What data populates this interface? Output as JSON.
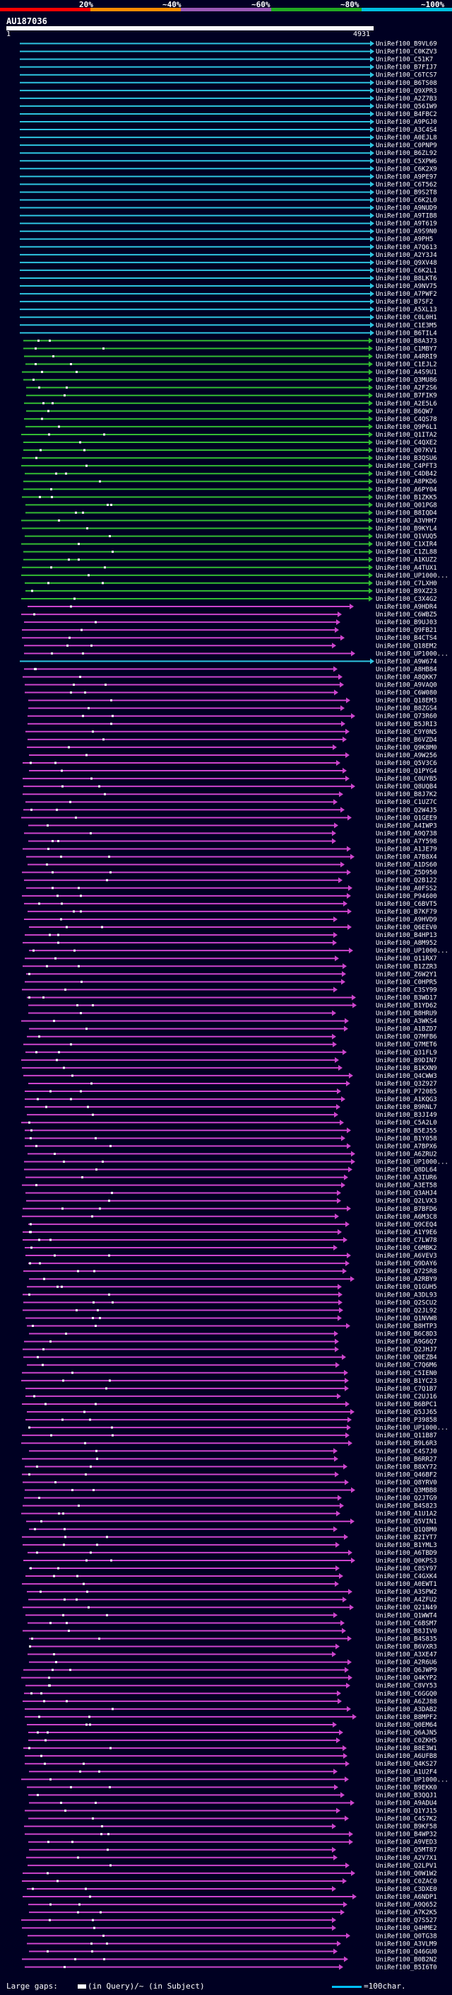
{
  "query": {
    "title": "AU187036",
    "ruler_start": "1",
    "ruler_end": "4931"
  },
  "legend": {
    "labels": [
      "20%",
      "~40%",
      "~60%",
      "~80%",
      "~100%"
    ],
    "colors": [
      "#ff0000",
      "#ff8c00",
      "#9b59b6",
      "#22aa22",
      "#00c0e0"
    ]
  },
  "colors": {
    "background": "#000022",
    "cyan": "#2ec4e0",
    "green": "#33bb33",
    "magenta": "#cc44cc",
    "text": "#ffffff",
    "dots": "#ffffff"
  },
  "hits": [
    {
      "label": "UniRef100_B9VL69",
      "c": "cyan"
    },
    {
      "label": "UniRef100_C0KZV3",
      "c": "cyan"
    },
    {
      "label": "UniRef100_C51K7",
      "c": "cyan"
    },
    {
      "label": "UniRef100_B7FIJ7",
      "c": "cyan"
    },
    {
      "label": "UniRef100_C6TCS7",
      "c": "cyan"
    },
    {
      "label": "UniRef100_B6TS08",
      "c": "cyan"
    },
    {
      "label": "UniRef100_Q9XPR3",
      "c": "cyan"
    },
    {
      "label": "UniRef100_A2Z7B3",
      "c": "cyan"
    },
    {
      "label": "UniRef100_Q56IW9",
      "c": "cyan"
    },
    {
      "label": "UniRef100_B4FBC2",
      "c": "cyan"
    },
    {
      "label": "UniRef100_A9PGJ0",
      "c": "cyan"
    },
    {
      "label": "UniRef100_A3C4S4",
      "c": "cyan"
    },
    {
      "label": "UniRef100_A0EJL8",
      "c": "cyan"
    },
    {
      "label": "UniRef100_C0PNP9",
      "c": "cyan"
    },
    {
      "label": "UniRef100_B6ZL92",
      "c": "cyan"
    },
    {
      "label": "UniRef100_C5XPW6",
      "c": "cyan"
    },
    {
      "label": "UniRef100_C6K2X9",
      "c": "cyan"
    },
    {
      "label": "UniRef100_A9PE97",
      "c": "cyan"
    },
    {
      "label": "UniRef100_C6T562",
      "c": "cyan"
    },
    {
      "label": "UniRef100_B9S2T8",
      "c": "cyan"
    },
    {
      "label": "UniRef100_C6K2L0",
      "c": "cyan"
    },
    {
      "label": "UniRef100_A9NUD9",
      "c": "cyan"
    },
    {
      "label": "UniRef100_A9TIB8",
      "c": "cyan"
    },
    {
      "label": "UniRef100_A9T619",
      "c": "cyan"
    },
    {
      "label": "UniRef100_A9S9N0",
      "c": "cyan"
    },
    {
      "label": "UniRef100_A9PH5",
      "c": "cyan"
    },
    {
      "label": "UniRef100_A7Q613",
      "c": "cyan"
    },
    {
      "label": "UniRef100_A2Y3J4",
      "c": "cyan"
    },
    {
      "label": "UniRef100_Q9XV48",
      "c": "cyan"
    },
    {
      "label": "UniRef100_C6K2L1",
      "c": "cyan"
    },
    {
      "label": "UniRef100_B8LKT6",
      "c": "cyan"
    },
    {
      "label": "UniRef100_A9NV75",
      "c": "cyan"
    },
    {
      "label": "UniRef100_A7PWF2",
      "c": "cyan"
    },
    {
      "label": "UniRef100_B7SF2",
      "c": "cyan"
    },
    {
      "label": "UniRef100_A5XL13",
      "c": "cyan"
    },
    {
      "label": "UniRef100_C0L0H1",
      "c": "cyan"
    },
    {
      "label": "UniRef100_C1E3M5",
      "c": "cyan"
    },
    {
      "label": "UniRef100_B6TIL4",
      "c": "cyan"
    },
    {
      "label": "UniRef100_B8A373",
      "c": "green"
    },
    {
      "label": "UniRef100_C1MBY7",
      "c": "green"
    },
    {
      "label": "UniRef100_A4RRI9",
      "c": "green"
    },
    {
      "label": "UniRef100_C1EJL2",
      "c": "green"
    },
    {
      "label": "UniRef100_A4S9U1",
      "c": "green"
    },
    {
      "label": "UniRef100_Q3MU86",
      "c": "green"
    },
    {
      "label": "UniRef100_A2F2S6",
      "c": "green"
    },
    {
      "label": "UniRef100_B7FIK9",
      "c": "green"
    },
    {
      "label": "UniRef100_A2E5L6",
      "c": "green"
    },
    {
      "label": "UniRef100_B6QW7",
      "c": "green"
    },
    {
      "label": "UniRef100_C4QS78",
      "c": "green"
    },
    {
      "label": "UniRef100_Q9P6L1",
      "c": "green"
    },
    {
      "label": "UniRef100_Q1ITA2",
      "c": "green"
    },
    {
      "label": "UniRef100_C4QXE2",
      "c": "green"
    },
    {
      "label": "UniRef100_Q07KV1",
      "c": "green"
    },
    {
      "label": "UniRef100_B3QSU6",
      "c": "green"
    },
    {
      "label": "UniRef100_C4PFT3",
      "c": "green"
    },
    {
      "label": "UniRef100_C4DB42",
      "c": "green"
    },
    {
      "label": "UniRef100_A8PKD6",
      "c": "green"
    },
    {
      "label": "UniRef100_A6PY04",
      "c": "green"
    },
    {
      "label": "UniRef100_B1ZKK5",
      "c": "green"
    },
    {
      "label": "UniRef100_Q01PG8",
      "c": "green"
    },
    {
      "label": "UniRef100_B8IQD4",
      "c": "green"
    },
    {
      "label": "UniRef100_A3VHH7",
      "c": "green"
    },
    {
      "label": "UniRef100_B9KYL4",
      "c": "green"
    },
    {
      "label": "UniRef100_Q1VUQ5",
      "c": "green"
    },
    {
      "label": "UniRef100_C1XIR4",
      "c": "green"
    },
    {
      "label": "UniRef100_C1ZL88",
      "c": "green"
    },
    {
      "label": "UniRef100_A1KUZ2",
      "c": "green"
    },
    {
      "label": "UniRef100_A4TUX1",
      "c": "green"
    },
    {
      "label": "UniRef100_UP1000...",
      "c": "green"
    },
    {
      "label": "UniRef100_C7LXH0",
      "c": "green"
    },
    {
      "label": "UniRef100_B9XZ23",
      "c": "green"
    },
    {
      "label": "UniRef100_C3X4G2",
      "c": "green"
    },
    {
      "label": "UniRef100_A9HDR4",
      "c": "magenta"
    },
    {
      "label": "UniRef100_C6WBZ5",
      "c": "magenta"
    },
    {
      "label": "UniRef100_B9UJ03",
      "c": "magenta"
    },
    {
      "label": "UniRef100_Q9FB21",
      "c": "magenta"
    },
    {
      "label": "UniRef100_B4CTS4",
      "c": "magenta"
    },
    {
      "label": "UniRef100_Q18EM2",
      "c": "magenta"
    },
    {
      "label": "UniRef100_UP1000...",
      "c": "magenta"
    },
    {
      "label": "UniRef100_A9W674",
      "c": "cyan"
    },
    {
      "label": "UniRef100_A8HB84",
      "c": "magenta"
    },
    {
      "label": "UniRef100_A8QKK7",
      "c": "magenta"
    },
    {
      "label": "UniRef100_A9VAQ0",
      "c": "magenta"
    },
    {
      "label": "UniRef100_C6W080",
      "c": "magenta"
    },
    {
      "label": "UniRef100_Q18EM3",
      "c": "magenta"
    },
    {
      "label": "UniRef100_B8ZGS4",
      "c": "magenta"
    },
    {
      "label": "UniRef100_Q73R60",
      "c": "magenta"
    },
    {
      "label": "UniRef100_B5JRI3",
      "c": "magenta"
    },
    {
      "label": "UniRef100_C9Y0N5",
      "c": "magenta"
    },
    {
      "label": "UniRef100_B6VZD4",
      "c": "magenta"
    },
    {
      "label": "UniRef100_Q9K8M0",
      "c": "magenta"
    },
    {
      "label": "UniRef100_A9W256",
      "c": "magenta"
    },
    {
      "label": "UniRef100_Q5V3C6",
      "c": "magenta"
    },
    {
      "label": "UniRef100_Q1PYG4",
      "c": "magenta"
    },
    {
      "label": "UniRef100_C0UYB5",
      "c": "magenta"
    },
    {
      "label": "UniRef100_Q8UQB4",
      "c": "magenta"
    },
    {
      "label": "UniRef100_B8J7K2",
      "c": "magenta"
    },
    {
      "label": "UniRef100_C1UZ7C",
      "c": "magenta"
    },
    {
      "label": "UniRef100_Q2W4J5",
      "c": "magenta"
    },
    {
      "label": "UniRef100_Q1GEE9",
      "c": "magenta"
    },
    {
      "label": "UniRef100_A4IWP3",
      "c": "magenta"
    },
    {
      "label": "UniRef100_A9Q738",
      "c": "magenta"
    },
    {
      "label": "UniRef100_A7Y598",
      "c": "magenta"
    },
    {
      "label": "UniRef100_A1JE79",
      "c": "magenta"
    },
    {
      "label": "UniRef100_A7B8X4",
      "c": "magenta"
    },
    {
      "label": "UniRef100_A1DS60",
      "c": "magenta"
    },
    {
      "label": "UniRef100_Z5D950",
      "c": "magenta"
    },
    {
      "label": "UniRef100_Q2B122",
      "c": "magenta"
    },
    {
      "label": "UniRef100_A0FSS2",
      "c": "magenta"
    },
    {
      "label": "UniRef100_P94600",
      "c": "magenta"
    },
    {
      "label": "UniRef100_C6BVT5",
      "c": "magenta"
    },
    {
      "label": "UniRef100_B7KF79",
      "c": "magenta"
    },
    {
      "label": "UniRef100_A9HVD9",
      "c": "magenta"
    },
    {
      "label": "UniRef100_Q6EEV0",
      "c": "magenta"
    },
    {
      "label": "UniRef100_B4HP13",
      "c": "magenta"
    },
    {
      "label": "UniRef100_A8M952",
      "c": "magenta"
    },
    {
      "label": "UniRef100_UP1000...",
      "c": "magenta"
    },
    {
      "label": "UniRef100_Q11RX7",
      "c": "magenta"
    },
    {
      "label": "UniRef100_B1ZZR3",
      "c": "magenta"
    },
    {
      "label": "UniRef100_Z6W2Y1",
      "c": "magenta"
    },
    {
      "label": "UniRef100_C0HPR5",
      "c": "magenta"
    },
    {
      "label": "UniRef100_C3SY99",
      "c": "magenta"
    },
    {
      "label": "UniRef100_B3WD17",
      "c": "magenta"
    },
    {
      "label": "UniRef100_B1YD62",
      "c": "magenta"
    },
    {
      "label": "UniRef100_B8HRU9",
      "c": "magenta"
    },
    {
      "label": "UniRef100_A3WKS4",
      "c": "magenta"
    },
    {
      "label": "UniRef100_A1BZD7",
      "c": "magenta"
    },
    {
      "label": "UniRef100_Q7MFB6",
      "c": "magenta"
    },
    {
      "label": "UniRef100_Q7MET6",
      "c": "magenta"
    },
    {
      "label": "UniRef100_Q31FL9",
      "c": "magenta"
    },
    {
      "label": "UniRef100_B9DIN7",
      "c": "magenta"
    },
    {
      "label": "UniRef100_B1KXN9",
      "c": "magenta"
    },
    {
      "label": "UniRef100_Q4CWW3",
      "c": "magenta"
    },
    {
      "label": "UniRef100_Q3Z927",
      "c": "magenta"
    },
    {
      "label": "UniRef100_P72085",
      "c": "magenta"
    },
    {
      "label": "UniRef100_A1KQG3",
      "c": "magenta"
    },
    {
      "label": "UniRef100_B9RNL7",
      "c": "magenta"
    },
    {
      "label": "UniRef100_B3JI49",
      "c": "magenta"
    },
    {
      "label": "UniRef100_C5A2L0",
      "c": "magenta"
    },
    {
      "label": "UniRef100_B5EJ55",
      "c": "magenta"
    },
    {
      "label": "UniRef100_B1Y058",
      "c": "magenta"
    },
    {
      "label": "UniRef100_A7BPX6",
      "c": "magenta"
    },
    {
      "label": "UniRef100_A6ZRU2",
      "c": "magenta"
    },
    {
      "label": "UniRef100_UP1000...",
      "c": "magenta"
    },
    {
      "label": "UniRef100_Q8DL64",
      "c": "magenta"
    },
    {
      "label": "UniRef100_A3IUR6",
      "c": "magenta"
    },
    {
      "label": "UniRef100_A3ET58",
      "c": "magenta"
    },
    {
      "label": "UniRef100_Q3AHJ4",
      "c": "magenta"
    },
    {
      "label": "UniRef100_Q2LVX3",
      "c": "magenta"
    },
    {
      "label": "UniRef100_B7BFD6",
      "c": "magenta"
    },
    {
      "label": "UniRef100_A6M3C8",
      "c": "magenta"
    },
    {
      "label": "UniRef100_Q9CEQ4",
      "c": "magenta"
    },
    {
      "label": "UniRef100_A1Y9E6",
      "c": "magenta"
    },
    {
      "label": "UniRef100_C7LW78",
      "c": "magenta"
    },
    {
      "label": "UniRef100_C6MBK2",
      "c": "magenta"
    },
    {
      "label": "UniRef100_A6VEV3",
      "c": "magenta"
    },
    {
      "label": "UniRef100_Q9DAY6",
      "c": "magenta"
    },
    {
      "label": "UniRef100_Q72SR8",
      "c": "magenta"
    },
    {
      "label": "UniRef100_A2RBY9",
      "c": "magenta"
    },
    {
      "label": "UniRef100_Q1GUH5",
      "c": "magenta"
    },
    {
      "label": "UniRef100_A3DL93",
      "c": "magenta"
    },
    {
      "label": "UniRef100_Q2SCU2",
      "c": "magenta"
    },
    {
      "label": "UniRef100_Q2JL92",
      "c": "magenta"
    },
    {
      "label": "UniRef100_Q1NVW8",
      "c": "magenta"
    },
    {
      "label": "UniRef100_B8HTP3",
      "c": "magenta"
    },
    {
      "label": "UniRef100_B6C8D3",
      "c": "magenta"
    },
    {
      "label": "UniRef100_A9G6Q7",
      "c": "magenta"
    },
    {
      "label": "UniRef100_Q2JHJ7",
      "c": "magenta"
    },
    {
      "label": "UniRef100_Q0EZB4",
      "c": "magenta"
    },
    {
      "label": "UniRef100_C7Q6M6",
      "c": "magenta"
    },
    {
      "label": "UniRef100_C5IEN0",
      "c": "magenta"
    },
    {
      "label": "UniRef100_B1YC23",
      "c": "magenta"
    },
    {
      "label": "UniRef100_C7Q1B7",
      "c": "magenta"
    },
    {
      "label": "UniRef100_C2UJ16",
      "c": "magenta"
    },
    {
      "label": "UniRef100_B6BPC1",
      "c": "magenta"
    },
    {
      "label": "UniRef100_Q5JJ65",
      "c": "magenta"
    },
    {
      "label": "UniRef100_P39858",
      "c": "magenta"
    },
    {
      "label": "UniRef100_UP1000...",
      "c": "magenta"
    },
    {
      "label": "UniRef100_Q11B87",
      "c": "magenta"
    },
    {
      "label": "UniRef100_B9L6R3",
      "c": "magenta"
    },
    {
      "label": "UniRef100_C4S7J0",
      "c": "magenta"
    },
    {
      "label": "UniRef100_B6RR27",
      "c": "magenta"
    },
    {
      "label": "UniRef100_B8XY72",
      "c": "magenta"
    },
    {
      "label": "UniRef100_Q46BF2",
      "c": "magenta"
    },
    {
      "label": "UniRef100_Q8YRV0",
      "c": "magenta"
    },
    {
      "label": "UniRef100_Q3MBB8",
      "c": "magenta"
    },
    {
      "label": "UniRef100_Q2JTG9",
      "c": "magenta"
    },
    {
      "label": "UniRef100_B4S823",
      "c": "magenta"
    },
    {
      "label": "UniRef100_A1U1A2",
      "c": "magenta"
    },
    {
      "label": "UniRef100_Q5VIN1",
      "c": "magenta"
    },
    {
      "label": "UniRef100_Q1Q8M0",
      "c": "magenta"
    },
    {
      "label": "UniRef100_B2IYT7",
      "c": "magenta"
    },
    {
      "label": "UniRef100_B1YML3",
      "c": "magenta"
    },
    {
      "label": "UniRef100_A6TBD9",
      "c": "magenta"
    },
    {
      "label": "UniRef100_Q0KPS3",
      "c": "magenta"
    },
    {
      "label": "UniRef100_C8SY97",
      "c": "magenta"
    },
    {
      "label": "UniRef100_C4GXK4",
      "c": "magenta"
    },
    {
      "label": "UniRef100_A0EWT1",
      "c": "magenta"
    },
    {
      "label": "UniRef100_A3SPW2",
      "c": "magenta"
    },
    {
      "label": "UniRef100_A4ZFU2",
      "c": "magenta"
    },
    {
      "label": "UniRef100_Q21N49",
      "c": "magenta"
    },
    {
      "label": "UniRef100_Q1WWT4",
      "c": "magenta"
    },
    {
      "label": "UniRef100_C6BSM7",
      "c": "magenta"
    },
    {
      "label": "UniRef100_B8JIV0",
      "c": "magenta"
    },
    {
      "label": "UniRef100_B4S835",
      "c": "magenta"
    },
    {
      "label": "UniRef100_B6VXR3",
      "c": "magenta"
    },
    {
      "label": "UniRef100_A3XE47",
      "c": "magenta"
    },
    {
      "label": "UniRef100_A2R6U6",
      "c": "magenta"
    },
    {
      "label": "UniRef100_Q6JWP9",
      "c": "magenta"
    },
    {
      "label": "UniRef100_Q4KYP2",
      "c": "magenta"
    },
    {
      "label": "UniRef100_C8VY53",
      "c": "magenta"
    },
    {
      "label": "UniRef100_C6GGQ0",
      "c": "magenta"
    },
    {
      "label": "UniRef100_A6ZJ88",
      "c": "magenta"
    },
    {
      "label": "UniRef100_A3DAB2",
      "c": "magenta"
    },
    {
      "label": "UniRef100_B8MPF2",
      "c": "magenta"
    },
    {
      "label": "UniRef100_Q0EM64",
      "c": "magenta"
    },
    {
      "label": "UniRef100_Q6AJN5",
      "c": "magenta"
    },
    {
      "label": "UniRef100_C0ZKH5",
      "c": "magenta"
    },
    {
      "label": "UniRef100_B8E3W1",
      "c": "magenta"
    },
    {
      "label": "UniRef100_A6UFB8",
      "c": "magenta"
    },
    {
      "label": "UniRef100_Q4KS27",
      "c": "magenta"
    },
    {
      "label": "UniRef100_A1U2F4",
      "c": "magenta"
    },
    {
      "label": "UniRef100_UP1000...",
      "c": "magenta"
    },
    {
      "label": "UniRef100_B9EKK0",
      "c": "magenta"
    },
    {
      "label": "UniRef100_B3QQJ1",
      "c": "magenta"
    },
    {
      "label": "UniRef100_A9ADU4",
      "c": "magenta"
    },
    {
      "label": "UniRef100_Q1YJ15",
      "c": "magenta"
    },
    {
      "label": "UniRef100_C4S7K2",
      "c": "magenta"
    },
    {
      "label": "UniRef100_B9KF58",
      "c": "magenta"
    },
    {
      "label": "UniRef100_B4WP32",
      "c": "magenta"
    },
    {
      "label": "UniRef100_A9VED3",
      "c": "magenta"
    },
    {
      "label": "UniRef100_Q5MT87",
      "c": "magenta"
    },
    {
      "label": "UniRef100_A2V7X1",
      "c": "magenta"
    },
    {
      "label": "UniRef100_Q2LPV1",
      "c": "magenta"
    },
    {
      "label": "UniRef100_Q0W1W2",
      "c": "magenta"
    },
    {
      "label": "UniRef100_C0ZAC0",
      "c": "magenta"
    },
    {
      "label": "UniRef100_C3DXE0",
      "c": "magenta"
    },
    {
      "label": "UniRef100_A6NDP1",
      "c": "magenta"
    },
    {
      "label": "UniRef100_A9Q652",
      "c": "magenta"
    },
    {
      "label": "UniRef100_A7K2K5",
      "c": "magenta"
    },
    {
      "label": "UniRef100_Q7S527",
      "c": "magenta"
    },
    {
      "label": "UniRef100_Q4HME2",
      "c": "magenta"
    },
    {
      "label": "UniRef100_Q0TG38",
      "c": "magenta"
    },
    {
      "label": "UniRef100_A3VLM9",
      "c": "magenta"
    },
    {
      "label": "UniRef100_Q46GU0",
      "c": "magenta"
    },
    {
      "label": "UniRef100_B0B2N2",
      "c": "magenta"
    },
    {
      "label": "UniRef100_B5I6T0",
      "c": "magenta"
    }
  ],
  "footer": {
    "large_gaps_label": "Large gaps:",
    "gap_text": "(in Query)/~ (in Subject)",
    "scale_text": "=100char."
  }
}
